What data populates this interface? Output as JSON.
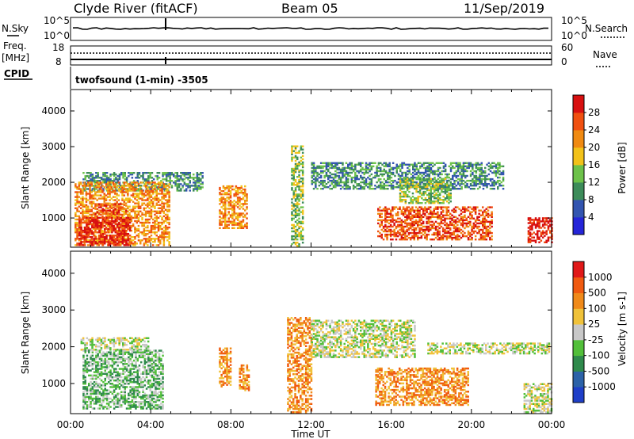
{
  "header": {
    "station": "Clyde River (fitACF)",
    "beam": "Beam 05",
    "date": "11/Sep/2019"
  },
  "noise_panel": {
    "left_label": "N.Sky",
    "right_label": "N.Search",
    "left_ticks": [
      "10^5",
      "10^0"
    ],
    "right_ticks": [
      "10^5",
      "10^0"
    ]
  },
  "freq_panel": {
    "left_label_1": "Freq.",
    "left_label_2": "[MHz]",
    "left_ticks": [
      "18",
      "8"
    ],
    "right_label": "Nave",
    "right_ticks": [
      "60",
      "0"
    ]
  },
  "cpid": {
    "label": "CPID",
    "value": "twofsound (1-min) -3505"
  },
  "chart_data": [
    {
      "type": "heatmap",
      "name": "power",
      "ylabel": "Slant Range [km]",
      "ylim": [
        180,
        4600
      ],
      "yticks": [
        1000,
        2000,
        3000,
        4000
      ],
      "xlim": [
        0,
        24
      ],
      "colorbar_label": "Power [dB]",
      "colorbar_ticks": [
        "28",
        "24",
        "20",
        "16",
        "12",
        "8",
        "4"
      ],
      "colorbar_colors": [
        "#2525d8",
        "#3355b0",
        "#3d8c5a",
        "#6dc24a",
        "#f2c21a",
        "#f08a12",
        "#f05010",
        "#d81010"
      ],
      "regions": [
        {
          "t": [
            0.6,
            6.6
          ],
          "r": [
            1750,
            2250
          ],
          "level": 2
        },
        {
          "t": [
            0.2,
            4.9
          ],
          "r": [
            220,
            2000
          ],
          "level": 5
        },
        {
          "t": [
            0.4,
            3.0
          ],
          "r": [
            220,
            1000
          ],
          "level": 7
        },
        {
          "t": [
            1.2,
            2.8
          ],
          "r": [
            1100,
            1400
          ],
          "level": 6
        },
        {
          "t": [
            7.4,
            8.8
          ],
          "r": [
            700,
            1900
          ],
          "level": 5
        },
        {
          "t": [
            11.0,
            11.6
          ],
          "r": [
            200,
            3000
          ],
          "level": 3
        },
        {
          "t": [
            12.0,
            21.6
          ],
          "r": [
            1800,
            2550
          ],
          "level": 2
        },
        {
          "t": [
            15.3,
            21.0
          ],
          "r": [
            380,
            1300
          ],
          "level": 6
        },
        {
          "t": [
            22.8,
            24.0
          ],
          "r": [
            300,
            1000
          ],
          "level": 7
        },
        {
          "t": [
            16.4,
            19.0
          ],
          "r": [
            1400,
            2100
          ],
          "level": 3
        }
      ]
    },
    {
      "type": "heatmap",
      "name": "velocity",
      "ylabel": "Slant Range [km]",
      "ylim": [
        180,
        4600
      ],
      "yticks": [
        1000,
        2000,
        3000,
        4000
      ],
      "xlim": [
        0,
        24
      ],
      "colorbar_label": "Velocity [m s-1]",
      "colorbar_ticks": [
        "1000",
        "500",
        "100",
        "25",
        "-25",
        "-100",
        "-500",
        "-1000"
      ],
      "colorbar_colors": [
        "#1f3fc8",
        "#2c62a8",
        "#2f8a4c",
        "#52bf3a",
        "#c8c8c8",
        "#f0c23a",
        "#f08a1a",
        "#f05a10",
        "#e01818"
      ],
      "regions": [
        {
          "t": [
            0.5,
            3.9
          ],
          "r": [
            1900,
            2250
          ],
          "level": 4
        },
        {
          "t": [
            0.6,
            4.6
          ],
          "r": [
            300,
            1900
          ],
          "level": 3
        },
        {
          "t": [
            7.4,
            8.0
          ],
          "r": [
            900,
            1950
          ],
          "level": 6
        },
        {
          "t": [
            8.4,
            8.9
          ],
          "r": [
            800,
            1500
          ],
          "level": 6
        },
        {
          "t": [
            10.8,
            12.0
          ],
          "r": [
            200,
            2800
          ],
          "level": 6
        },
        {
          "t": [
            12.0,
            17.2
          ],
          "r": [
            1700,
            2700
          ],
          "level": 4
        },
        {
          "t": [
            15.2,
            19.8
          ],
          "r": [
            400,
            1400
          ],
          "level": 6
        },
        {
          "t": [
            17.8,
            23.9
          ],
          "r": [
            1800,
            2100
          ],
          "level": 4
        },
        {
          "t": [
            22.6,
            24.0
          ],
          "r": [
            200,
            1000
          ],
          "level": 4
        }
      ]
    }
  ],
  "xaxis": {
    "ticks": [
      "00:00",
      "04:00",
      "08:00",
      "12:00",
      "16:00",
      "20:00",
      "00:00"
    ],
    "label": "Time UT"
  }
}
